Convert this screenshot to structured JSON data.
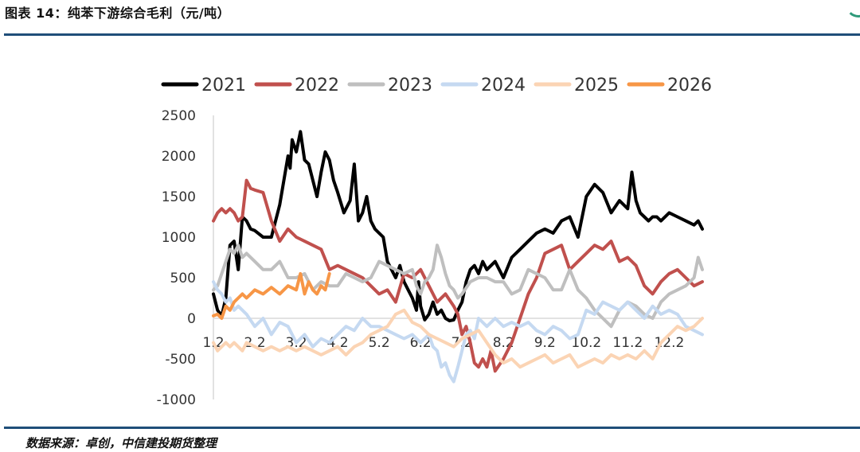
{
  "header": {
    "title": "图表 14：纯苯下游综合毛利（元/吨）"
  },
  "footer": {
    "source": "数据来源：卓创，中信建投期货整理"
  },
  "chart_data": {
    "type": "line",
    "title": "纯苯下游综合毛利（元/吨）",
    "xlabel": "",
    "ylabel": "元/吨",
    "ylim": [
      -1000,
      2500
    ],
    "yticks": [
      -1000,
      -500,
      0,
      500,
      1000,
      1500,
      2000,
      2500
    ],
    "xlim": [
      1.2,
      13.0
    ],
    "xticks": [
      {
        "label": "1.2",
        "pos": 1.2
      },
      {
        "label": "2.2",
        "pos": 2.2
      },
      {
        "label": "3.2",
        "pos": 3.2
      },
      {
        "label": "4.2",
        "pos": 4.2
      },
      {
        "label": "5.2",
        "pos": 5.2
      },
      {
        "label": "6.2",
        "pos": 6.2
      },
      {
        "label": "7.2",
        "pos": 7.2
      },
      {
        "label": "8.2",
        "pos": 8.2
      },
      {
        "label": "9.2",
        "pos": 9.2
      },
      {
        "label": "10.2",
        "pos": 10.2
      },
      {
        "label": "11.2",
        "pos": 11.2
      },
      {
        "label": "12.2",
        "pos": 12.2
      }
    ],
    "legend_position": "top",
    "series": [
      {
        "name": "2021",
        "color": "#000000",
        "width": 4,
        "x": [
          1.2,
          1.3,
          1.4,
          1.5,
          1.6,
          1.7,
          1.8,
          1.9,
          2.0,
          2.1,
          2.2,
          2.4,
          2.6,
          2.8,
          3.0,
          3.05,
          3.1,
          3.2,
          3.3,
          3.4,
          3.5,
          3.6,
          3.7,
          3.8,
          3.9,
          4.0,
          4.1,
          4.2,
          4.35,
          4.5,
          4.6,
          4.7,
          4.8,
          4.9,
          5.0,
          5.1,
          5.2,
          5.3,
          5.4,
          5.5,
          5.6,
          5.7,
          5.8,
          5.9,
          6.0,
          6.1,
          6.15,
          6.2,
          6.3,
          6.4,
          6.5,
          6.6,
          6.7,
          6.8,
          6.9,
          7.0,
          7.1,
          7.2,
          7.3,
          7.4,
          7.5,
          7.6,
          7.7,
          7.8,
          7.9,
          8.0,
          8.1,
          8.2,
          8.4,
          8.6,
          8.8,
          9.0,
          9.2,
          9.4,
          9.6,
          9.8,
          10.0,
          10.2,
          10.4,
          10.6,
          10.8,
          11.0,
          11.1,
          11.2,
          11.3,
          11.4,
          11.5,
          11.6,
          11.7,
          11.8,
          11.9,
          12.0,
          12.2,
          12.4,
          12.6,
          12.8,
          12.9,
          13.0
        ],
        "y": [
          300,
          100,
          30,
          250,
          900,
          950,
          600,
          1250,
          1200,
          1100,
          1080,
          1000,
          1000,
          1400,
          2000,
          1850,
          2200,
          2050,
          2300,
          1950,
          1900,
          1700,
          1500,
          1800,
          2050,
          1950,
          1700,
          1550,
          1300,
          1450,
          1900,
          1200,
          1300,
          1500,
          1200,
          1100,
          1050,
          1000,
          700,
          600,
          500,
          650,
          450,
          350,
          250,
          100,
          450,
          150,
          -20,
          50,
          200,
          50,
          100,
          0,
          -30,
          -20,
          100,
          200,
          450,
          600,
          650,
          550,
          700,
          600,
          650,
          700,
          600,
          500,
          750,
          850,
          950,
          1050,
          1100,
          1050,
          1200,
          1250,
          1000,
          1500,
          1650,
          1550,
          1300,
          1450,
          1400,
          1350,
          1800,
          1450,
          1300,
          1250,
          1200,
          1250,
          1250,
          1200,
          1300,
          1250,
          1200,
          1150,
          1200,
          1100
        ]
      },
      {
        "name": "2022",
        "color": "#c0504d",
        "width": 4,
        "x": [
          1.2,
          1.3,
          1.4,
          1.5,
          1.6,
          1.7,
          1.8,
          1.9,
          2.0,
          2.1,
          2.2,
          2.4,
          2.6,
          2.8,
          3.0,
          3.2,
          3.4,
          3.6,
          3.8,
          4.0,
          4.2,
          4.4,
          4.6,
          4.8,
          5.0,
          5.2,
          5.4,
          5.6,
          5.8,
          6.0,
          6.2,
          6.4,
          6.6,
          6.8,
          7.0,
          7.1,
          7.2,
          7.3,
          7.4,
          7.5,
          7.6,
          7.7,
          7.8,
          7.9,
          8.0,
          8.2,
          8.4,
          8.6,
          8.8,
          9.0,
          9.2,
          9.4,
          9.6,
          9.8,
          10.0,
          10.2,
          10.4,
          10.6,
          10.8,
          11.0,
          11.2,
          11.4,
          11.6,
          11.8,
          12.0,
          12.2,
          12.4,
          12.6,
          12.8,
          13.0
        ],
        "y": [
          1200,
          1300,
          1350,
          1300,
          1350,
          1300,
          1200,
          1250,
          1700,
          1600,
          1580,
          1550,
          1200,
          950,
          1100,
          1000,
          950,
          900,
          850,
          600,
          650,
          600,
          550,
          500,
          400,
          300,
          350,
          200,
          550,
          500,
          600,
          400,
          200,
          300,
          150,
          50,
          -200,
          -100,
          -300,
          -550,
          -600,
          -500,
          -600,
          -400,
          -650,
          -500,
          -300,
          0,
          300,
          500,
          800,
          850,
          900,
          600,
          700,
          800,
          900,
          850,
          950,
          700,
          750,
          650,
          400,
          300,
          450,
          550,
          600,
          500,
          400,
          450
        ]
      },
      {
        "name": "2023",
        "color": "#bfbfbf",
        "width": 4,
        "x": [
          1.2,
          1.3,
          1.4,
          1.5,
          1.6,
          1.7,
          1.8,
          1.9,
          2.0,
          2.2,
          2.4,
          2.6,
          2.8,
          3.0,
          3.2,
          3.4,
          3.6,
          3.8,
          4.0,
          4.2,
          4.4,
          4.6,
          4.8,
          5.0,
          5.2,
          5.4,
          5.6,
          5.8,
          6.0,
          6.1,
          6.2,
          6.3,
          6.4,
          6.5,
          6.6,
          6.7,
          6.8,
          6.9,
          7.0,
          7.1,
          7.2,
          7.4,
          7.6,
          7.8,
          8.0,
          8.2,
          8.4,
          8.6,
          8.8,
          9.0,
          9.2,
          9.4,
          9.6,
          9.8,
          10.0,
          10.2,
          10.4,
          10.6,
          10.8,
          11.0,
          11.2,
          11.4,
          11.6,
          11.8,
          12.0,
          12.2,
          12.4,
          12.6,
          12.8,
          12.9,
          13.0
        ],
        "y": [
          350,
          400,
          550,
          700,
          850,
          800,
          900,
          750,
          800,
          700,
          600,
          600,
          700,
          500,
          500,
          550,
          350,
          450,
          400,
          400,
          550,
          500,
          450,
          500,
          700,
          650,
          600,
          550,
          600,
          400,
          300,
          450,
          500,
          600,
          900,
          750,
          550,
          400,
          350,
          250,
          300,
          450,
          500,
          500,
          450,
          450,
          300,
          350,
          600,
          550,
          500,
          350,
          350,
          600,
          350,
          250,
          100,
          0,
          -100,
          100,
          200,
          150,
          50,
          0,
          200,
          300,
          350,
          400,
          500,
          750,
          600
        ]
      },
      {
        "name": "2024",
        "color": "#c5d9f1",
        "width": 4,
        "x": [
          1.2,
          1.3,
          1.4,
          1.5,
          1.6,
          1.7,
          1.8,
          1.9,
          2.0,
          2.2,
          2.4,
          2.6,
          2.8,
          3.0,
          3.2,
          3.4,
          3.6,
          3.8,
          4.0,
          4.2,
          4.4,
          4.6,
          4.8,
          5.0,
          5.2,
          5.4,
          5.6,
          5.8,
          6.0,
          6.2,
          6.4,
          6.5,
          6.6,
          6.7,
          6.8,
          6.9,
          7.0,
          7.1,
          7.2,
          7.3,
          7.4,
          7.5,
          7.6,
          7.8,
          8.0,
          8.2,
          8.4,
          8.6,
          8.8,
          9.0,
          9.2,
          9.4,
          9.6,
          9.8,
          10.0,
          10.1,
          10.2,
          10.4,
          10.6,
          10.8,
          11.0,
          11.2,
          11.4,
          11.6,
          11.8,
          12.0,
          12.2,
          12.4,
          12.6,
          12.8,
          13.0
        ],
        "y": [
          450,
          350,
          300,
          200,
          250,
          100,
          150,
          100,
          50,
          -100,
          0,
          -200,
          -50,
          -100,
          -300,
          -200,
          -350,
          -250,
          -300,
          -200,
          -100,
          -150,
          0,
          -100,
          -100,
          -150,
          -200,
          -250,
          -200,
          -300,
          -200,
          -350,
          -400,
          -600,
          -550,
          -700,
          -780,
          -600,
          -400,
          -200,
          -150,
          -250,
          0,
          -100,
          0,
          -100,
          -50,
          -100,
          -50,
          -150,
          -200,
          -100,
          -150,
          -250,
          -200,
          -50,
          100,
          50,
          200,
          150,
          100,
          200,
          100,
          0,
          150,
          50,
          100,
          50,
          -100,
          -150,
          -200
        ]
      },
      {
        "name": "2025",
        "color": "#fbd4b4",
        "width": 4,
        "x": [
          1.2,
          1.3,
          1.4,
          1.5,
          1.6,
          1.7,
          1.8,
          1.9,
          2.0,
          2.2,
          2.4,
          2.6,
          2.8,
          3.0,
          3.2,
          3.4,
          3.6,
          3.8,
          4.0,
          4.2,
          4.4,
          4.6,
          4.8,
          5.0,
          5.2,
          5.4,
          5.6,
          5.8,
          6.0,
          6.2,
          6.4,
          6.6,
          6.8,
          7.0,
          7.2,
          7.4,
          7.6,
          7.8,
          8.0,
          8.2,
          8.4,
          8.6,
          8.8,
          9.0,
          9.2,
          9.4,
          9.6,
          9.8,
          10.0,
          10.2,
          10.4,
          10.6,
          10.8,
          11.0,
          11.2,
          11.4,
          11.6,
          11.8,
          12.0,
          12.2,
          12.4,
          12.6,
          12.8,
          13.0
        ],
        "y": [
          -300,
          -400,
          -350,
          -300,
          -350,
          -300,
          -350,
          -400,
          -300,
          -350,
          -400,
          -350,
          -400,
          -350,
          -400,
          -350,
          -400,
          -450,
          -400,
          -350,
          -450,
          -350,
          -300,
          -200,
          -150,
          -100,
          50,
          100,
          -50,
          -100,
          -200,
          -250,
          -300,
          -350,
          -250,
          -200,
          -150,
          -300,
          -450,
          -550,
          -500,
          -600,
          -550,
          -500,
          -450,
          -550,
          -500,
          -450,
          -600,
          -550,
          -500,
          -550,
          -450,
          -500,
          -450,
          -500,
          -400,
          -500,
          -300,
          -200,
          -100,
          -150,
          -100,
          0
        ]
      },
      {
        "name": "2026",
        "color": "#f79646",
        "width": 4,
        "x": [
          1.2,
          1.3,
          1.4,
          1.5,
          1.6,
          1.7,
          1.8,
          1.9,
          2.0,
          2.1,
          2.2,
          2.4,
          2.6,
          2.8,
          3.0,
          3.2,
          3.3,
          3.4,
          3.5,
          3.6,
          3.7,
          3.8,
          3.9,
          4.0
        ],
        "y": [
          30,
          50,
          0,
          150,
          100,
          200,
          250,
          300,
          250,
          300,
          350,
          300,
          380,
          300,
          400,
          350,
          550,
          300,
          450,
          350,
          300,
          400,
          350,
          550
        ]
      }
    ]
  }
}
